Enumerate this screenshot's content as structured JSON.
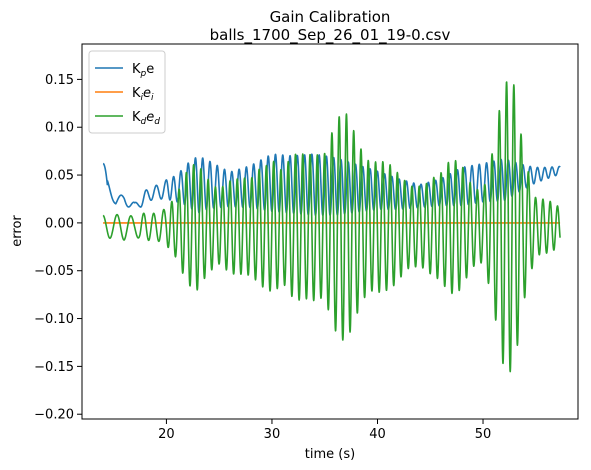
{
  "chart_data": {
    "type": "line",
    "title": "Gain Calibration",
    "subtitle": "balls_1700_Sep_26_01_19-0.csv",
    "xlabel": "time (s)",
    "ylabel": "error",
    "xlim": [
      12,
      59
    ],
    "ylim": [
      -0.205,
      0.187
    ],
    "xticks": [
      20,
      30,
      40,
      50
    ],
    "xtick_labels": [
      "20",
      "30",
      "40",
      "50"
    ],
    "yticks": [
      -0.2,
      -0.15,
      -0.1,
      -0.05,
      0.0,
      0.05,
      0.1,
      0.15
    ],
    "ytick_labels": [
      "−0.20",
      "−0.15",
      "−0.10",
      "−0.05",
      "0.00",
      "0.05",
      "0.10",
      "0.15"
    ],
    "grid": false,
    "legend_position": "top-left",
    "series": [
      {
        "name": "Kpe",
        "legend_main": "K",
        "legend_sub": "p",
        "legend_tail": "e",
        "color": "#1f77b4",
        "generator": "proportional",
        "x_start": 14.0,
        "x_end": 57.3,
        "anchor_x": [
          14.0,
          14.4,
          15.2,
          16.0,
          17.0,
          18.0,
          19.0,
          20.0,
          21.0,
          22.0,
          23.0,
          24.0,
          26.0,
          28.0,
          30.0,
          32.0,
          34.0,
          36.0,
          38.0,
          40.0,
          42.0,
          44.0,
          46.0,
          48.0,
          50.0,
          52.0,
          54.0,
          55.0,
          56.0,
          57.3
        ],
        "anchor_mid": [
          0.062,
          0.04,
          0.022,
          0.026,
          0.015,
          0.028,
          0.032,
          0.035,
          0.036,
          0.04,
          0.04,
          0.04,
          0.035,
          0.038,
          0.042,
          0.04,
          0.04,
          0.038,
          0.036,
          0.034,
          0.03,
          0.028,
          0.032,
          0.038,
          0.042,
          0.045,
          0.048,
          0.05,
          0.052,
          0.055
        ],
        "anchor_amp": [
          0.0,
          0.005,
          0.004,
          0.005,
          0.006,
          0.006,
          0.007,
          0.01,
          0.014,
          0.022,
          0.03,
          0.025,
          0.018,
          0.022,
          0.03,
          0.03,
          0.032,
          0.03,
          0.025,
          0.02,
          0.016,
          0.012,
          0.014,
          0.02,
          0.02,
          0.022,
          0.012,
          0.008,
          0.006,
          0.004
        ]
      },
      {
        "name": "Kiei",
        "legend_main": "K",
        "legend_sub": "i",
        "legend_tail": "e",
        "legend_tail_sub": "i",
        "color": "#ff7f0e",
        "generator": "constant",
        "x_start": 14.0,
        "x_end": 57.3,
        "value": 0.0
      },
      {
        "name": "Kded",
        "legend_main": "K",
        "legend_sub": "d",
        "legend_tail": "e",
        "legend_tail_sub": "d",
        "color": "#2ca02c",
        "generator": "derivative",
        "x_start": 14.0,
        "x_end": 57.3,
        "anchor_x": [
          14.0,
          15.0,
          16.0,
          17.0,
          18.0,
          19.0,
          20.0,
          21.0,
          22.0,
          23.0,
          24.0,
          25.0,
          26.0,
          27.0,
          28.0,
          29.0,
          30.0,
          31.0,
          32.0,
          33.0,
          34.0,
          35.0,
          36.0,
          37.0,
          38.0,
          39.0,
          40.0,
          41.0,
          42.0,
          43.0,
          44.0,
          45.0,
          46.0,
          47.0,
          48.0,
          49.0,
          50.0,
          51.0,
          52.0,
          53.0,
          54.0,
          55.0,
          56.0,
          57.3
        ],
        "anchor_amp": [
          0.012,
          0.012,
          0.015,
          0.012,
          0.02,
          0.02,
          0.025,
          0.035,
          0.06,
          0.08,
          0.07,
          0.05,
          0.05,
          0.05,
          0.06,
          0.09,
          0.09,
          0.06,
          0.075,
          0.09,
          0.11,
          0.1,
          0.115,
          0.12,
          0.11,
          0.1,
          0.09,
          0.07,
          0.055,
          0.05,
          0.06,
          0.065,
          0.06,
          0.07,
          0.075,
          0.06,
          0.05,
          0.09,
          0.15,
          0.17,
          0.1,
          0.04,
          0.03,
          0.02
        ]
      }
    ]
  }
}
